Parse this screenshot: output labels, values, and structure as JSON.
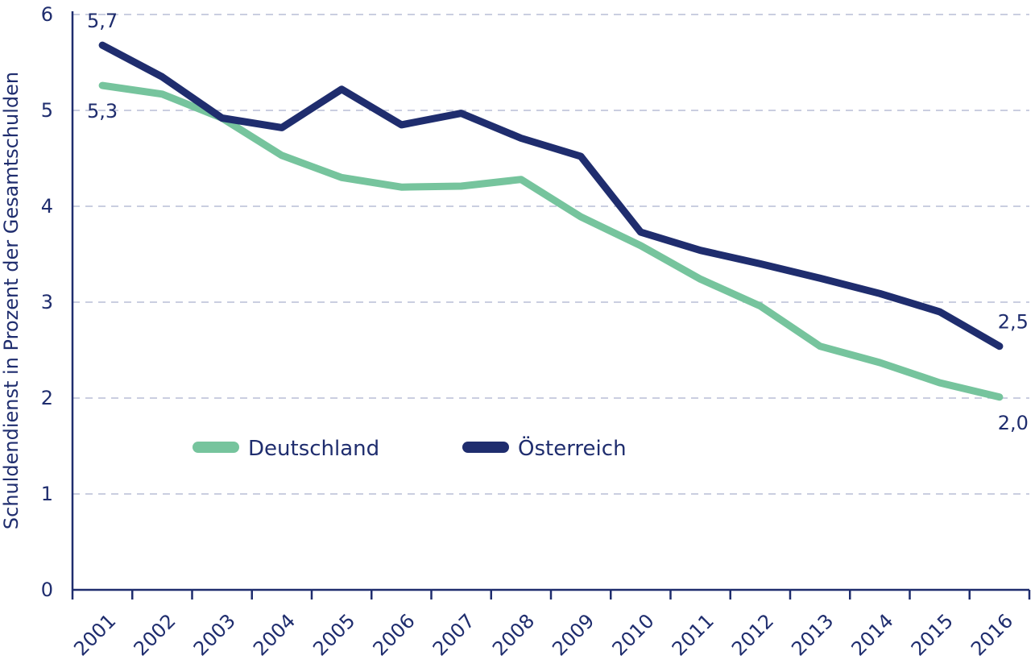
{
  "chart_data": {
    "type": "line",
    "title": "",
    "xlabel": "",
    "ylabel": "Schuldendienst in Prozent der Gesamtschulden",
    "ylim": [
      0,
      6
    ],
    "yticks": [
      "0",
      "1",
      "2",
      "3",
      "4",
      "5",
      "6"
    ],
    "grid": "horizontal dashed",
    "legend_position": "middle-left",
    "categories": [
      "2001",
      "2002",
      "2003",
      "2004",
      "2005",
      "2006",
      "2007",
      "2008",
      "2009",
      "2010",
      "2011",
      "2012",
      "2013",
      "2014",
      "2015",
      "2016"
    ],
    "series": [
      {
        "name": "Deutschland",
        "color": "#76c49d",
        "values": [
          5.26,
          5.17,
          4.92,
          4.53,
          4.3,
          4.2,
          4.21,
          4.28,
          3.89,
          3.59,
          3.24,
          2.96,
          2.54,
          2.37,
          2.16,
          2.01
        ]
      },
      {
        "name": "Österreich",
        "color": "#1f2d6e",
        "values": [
          5.68,
          5.35,
          4.92,
          4.82,
          5.22,
          4.85,
          4.97,
          4.71,
          4.52,
          3.73,
          3.54,
          3.4,
          3.25,
          3.09,
          2.9,
          2.54
        ]
      }
    ],
    "annotations": [
      {
        "text": "5,7",
        "series": "Österreich",
        "category": "2001",
        "place": "above"
      },
      {
        "text": "5,3",
        "series": "Deutschland",
        "category": "2001",
        "place": "below"
      },
      {
        "text": "2,5",
        "series": "Österreich",
        "category": "2016",
        "place": "above"
      },
      {
        "text": "2,0",
        "series": "Deutschland",
        "category": "2016",
        "place": "below"
      }
    ]
  }
}
